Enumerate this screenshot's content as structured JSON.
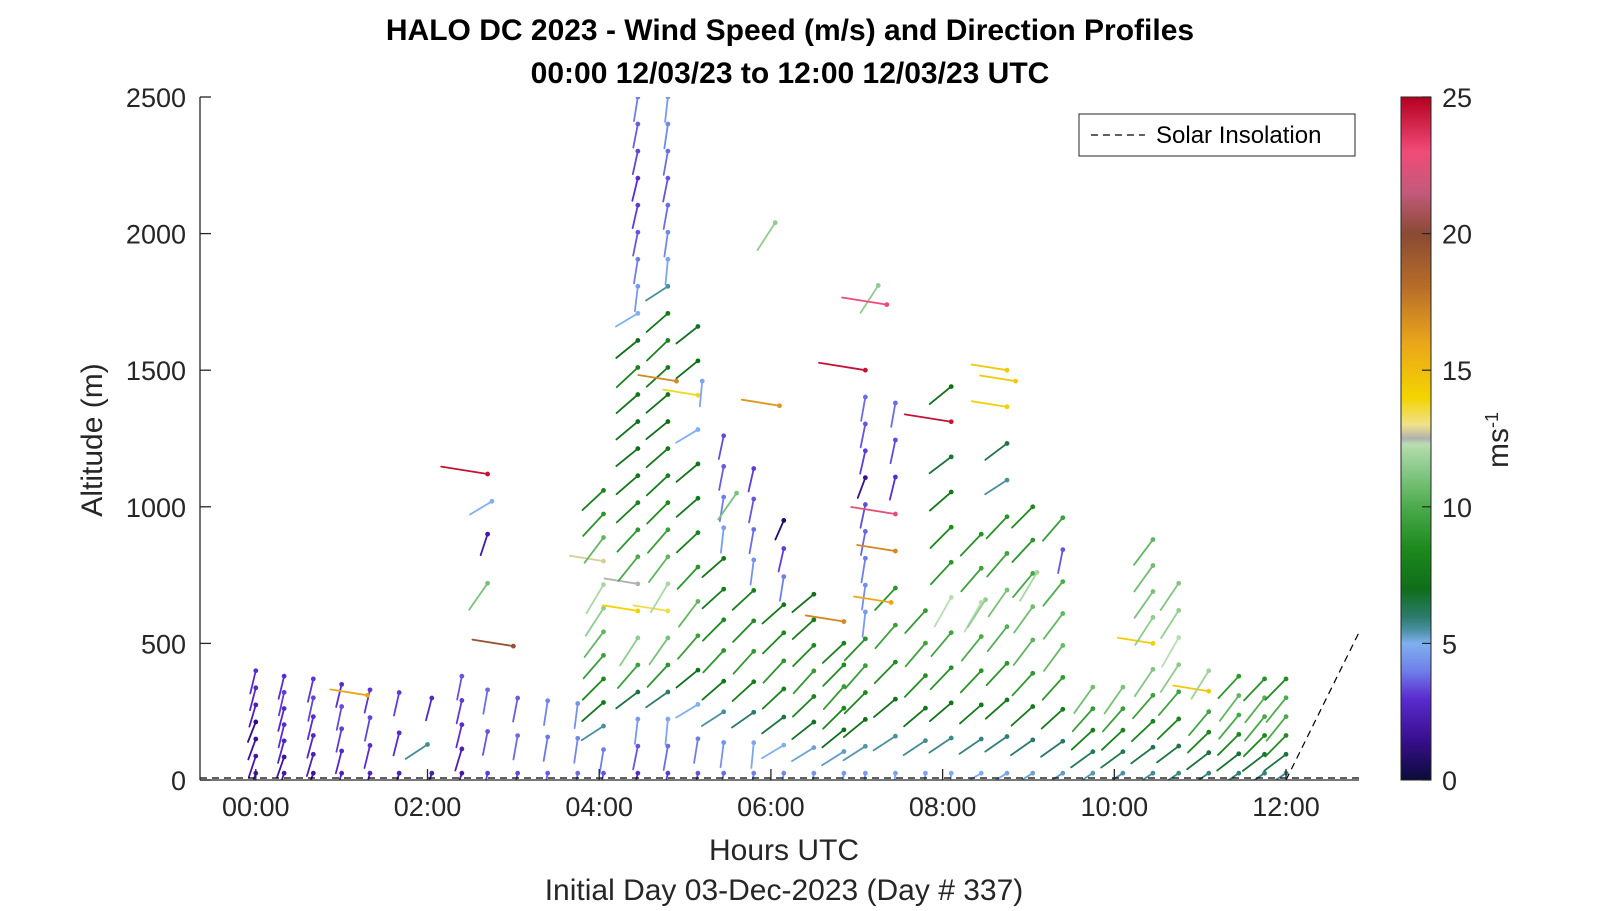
{
  "chart_data": {
    "type": "scatter",
    "title": "HALO DC 2023 - Wind Speed (m/s) and Direction Profiles",
    "subtitle": "00:00 12/03/23 to 12:00 12/03/23  UTC",
    "xlabel": "Hours UTC",
    "xlabel2": "Initial Day 03-Dec-2023 (Day # 337)",
    "ylabel": "Altitude (m)",
    "xlim": [
      -0.65,
      12.85
    ],
    "ylim": [
      0,
      2500
    ],
    "x_ticks": [
      0,
      2,
      4,
      6,
      8,
      10,
      12
    ],
    "x_tick_labels": [
      "00:00",
      "02:00",
      "04:00",
      "06:00",
      "08:00",
      "10:00",
      "12:00"
    ],
    "y_ticks": [
      0,
      500,
      1000,
      1500,
      2000,
      2500
    ],
    "y_tick_labels": [
      "0",
      "500",
      "1000",
      "1500",
      "2000",
      "2500"
    ],
    "colorbar": {
      "label": "ms-1",
      "label_main": "ms",
      "label_sup": "-1",
      "range": [
        0,
        25
      ],
      "ticks": [
        0,
        5,
        10,
        15,
        20,
        25
      ],
      "tick_labels": [
        "0",
        "5",
        "10",
        "15",
        "20",
        "25"
      ],
      "stops": [
        {
          "v": 0,
          "color": "#0b0b3a"
        },
        {
          "v": 1.5,
          "color": "#3a0f8f"
        },
        {
          "v": 3,
          "color": "#5a2ccf"
        },
        {
          "v": 4,
          "color": "#6f7fe8"
        },
        {
          "v": 5,
          "color": "#7fb0f0"
        },
        {
          "v": 5.5,
          "color": "#4a8fa0"
        },
        {
          "v": 6,
          "color": "#2b7a6a"
        },
        {
          "v": 7,
          "color": "#0f6e1a"
        },
        {
          "v": 8.5,
          "color": "#1e8a1e"
        },
        {
          "v": 10,
          "color": "#4cab4c"
        },
        {
          "v": 11.5,
          "color": "#8fcc8f"
        },
        {
          "v": 12.3,
          "color": "#b8ddb0"
        },
        {
          "v": 12.5,
          "color": "#b0b0b0"
        },
        {
          "v": 13,
          "color": "#efe28a"
        },
        {
          "v": 14,
          "color": "#f3d400"
        },
        {
          "v": 16,
          "color": "#eaa61a"
        },
        {
          "v": 18,
          "color": "#b86e28"
        },
        {
          "v": 20,
          "color": "#8a4a34"
        },
        {
          "v": 21.5,
          "color": "#c25a7a"
        },
        {
          "v": 23,
          "color": "#f04b78"
        },
        {
          "v": 25,
          "color": "#b5001f"
        }
      ]
    },
    "legend": {
      "entries": [
        "Solar Insolation"
      ],
      "location": "top-right"
    },
    "solar_insolation": {
      "x": [
        12.0,
        12.85
      ],
      "y": [
        0,
        540
      ]
    },
    "series": [
      {
        "name": "wind barbs",
        "columns": [
          {
            "t": 0.0,
            "top": 400,
            "spd": [
              2.2,
              2.0,
              1.6,
              1.3,
              2.4,
              2.8,
              3.0
            ]
          },
          {
            "t": 0.33,
            "top": 380,
            "spd": [
              2.0,
              1.8,
              2.6,
              3.0,
              2.8,
              3.2,
              3.0
            ]
          },
          {
            "t": 0.67,
            "top": 370,
            "spd": [
              1.8,
              2.4,
              2.7,
              3.0,
              3.3,
              3.1
            ]
          },
          {
            "t": 1.0,
            "top": 350,
            "spd": [
              2.5,
              2.8,
              3.2,
              3.4,
              3.0
            ]
          },
          {
            "t": 1.33,
            "top": 330,
            "spd": [
              2.6,
              3.0,
              3.3,
              3.1
            ]
          },
          {
            "t": 1.67,
            "top": 320,
            "spd": [
              2.4,
              2.9,
              3.2
            ]
          },
          {
            "t": 2.05,
            "top": 300,
            "spd": [
              2.2,
              2.8
            ]
          },
          {
            "t": 2.4,
            "top": 380,
            "spd": [
              2.0,
              2.3,
              3.0,
              3.2,
              3.5
            ]
          },
          {
            "t": 2.7,
            "top": 330,
            "spd": [
              3.2,
              3.5,
              3.8
            ]
          },
          {
            "t": 3.05,
            "top": 300,
            "spd": [
              3.4,
              3.8,
              3.6
            ]
          },
          {
            "t": 3.4,
            "top": 290,
            "spd": [
              3.6,
              3.9,
              4.1
            ]
          },
          {
            "t": 3.75,
            "top": 280,
            "spd": [
              3.8,
              4.2,
              4.4
            ]
          },
          {
            "t": 4.05,
            "top": 1060,
            "spd": [
              3.5,
              4.0,
              5.5,
              7.5,
              8.5,
              9.5,
              10.5,
              11.5,
              12.0,
              12.8,
              10.5,
              9.0,
              8.0
            ]
          },
          {
            "t": 4.45,
            "top": 2500,
            "spd": [
              3.0,
              3.5,
              4.5,
              6.5,
              9.5,
              11.5,
              14.0,
              12.5,
              10.0,
              9.0,
              8.0,
              7.5,
              7.0,
              7.2,
              7.5,
              8.0,
              7.0,
              5.0,
              4.5,
              4.0,
              3.5,
              3.2,
              3.0,
              3.3,
              3.6,
              4.0
            ]
          },
          {
            "t": 4.8,
            "top": 2500,
            "spd": [
              3.2,
              3.8,
              4.8,
              6.0,
              9.0,
              11.0,
              13.5,
              12.0,
              10.5,
              9.5,
              8.5,
              8.0,
              7.5,
              7.0,
              7.3,
              7.8,
              8.2,
              7.5,
              5.5,
              4.8,
              4.2,
              3.8,
              3.5,
              3.8,
              4.2,
              4.6
            ]
          },
          {
            "t": 5.15,
            "top": 1660,
            "spd": [
              3.5,
              4.0,
              5.0,
              7.0,
              9.5,
              10.5,
              9.0,
              8.0,
              7.5,
              7.2,
              5.0,
              13.8,
              7.0,
              6.8
            ]
          },
          {
            "t": 5.45,
            "top": 1260,
            "spd": [
              3.8,
              4.4,
              5.5,
              7.5,
              9.0,
              8.5,
              7.8,
              7.5,
              4.6,
              4.0,
              3.6,
              3.4
            ]
          },
          {
            "t": 5.8,
            "top": 1140,
            "spd": [
              4.0,
              4.8,
              6.0,
              7.8,
              9.2,
              8.6,
              7.9,
              4.4,
              3.8,
              3.5,
              3.2
            ]
          },
          {
            "t": 6.15,
            "top": 950,
            "spd": [
              4.2,
              5.0,
              6.5,
              8.0,
              9.0,
              8.4,
              7.6,
              4.0,
              3.2,
              0.8
            ]
          },
          {
            "t": 6.5,
            "top": 680,
            "spd": [
              4.4,
              5.2,
              6.8,
              8.2,
              9.2,
              8.5,
              7.8,
              7.2
            ]
          },
          {
            "t": 6.85,
            "top": 580,
            "spd": [
              4.5,
              5.3,
              7.0,
              8.4,
              9.3,
              8.6,
              8.0,
              17.0
            ]
          },
          {
            "t": 7.1,
            "top": 1500,
            "spd": [
              4.6,
              5.4,
              7.1,
              8.5,
              9.4,
              8.8,
              4.6,
              4.3,
              4.0,
              3.7,
              3.4,
              1.5,
              3.2,
              3.5,
              3.8,
              24.5
            ]
          },
          {
            "t": 7.45,
            "top": 1380,
            "spd": [
              4.7,
              5.5,
              7.2,
              8.6,
              9.5,
              9.0,
              17.0,
              22.5,
              3.0,
              3.4,
              3.8
            ]
          },
          {
            "t": 7.8,
            "top": 620,
            "spd": [
              4.8,
              5.6,
              7.3,
              8.7,
              9.6,
              9.2
            ]
          },
          {
            "t": 8.1,
            "top": 1440,
            "spd": [
              4.9,
              5.7,
              7.4,
              8.8,
              9.7,
              12.3,
              9.0,
              8.5,
              7.5,
              6.5,
              24.5,
              7.0
            ]
          },
          {
            "t": 8.45,
            "top": 900,
            "spd": [
              5.0,
              5.8,
              7.5,
              8.9,
              10.0,
              12.3,
              9.5,
              8.8
            ]
          },
          {
            "t": 8.75,
            "top": 1500,
            "spd": [
              5.1,
              5.9,
              7.6,
              9.0,
              10.2,
              11.0,
              9.6,
              8.9,
              5.5,
              6.5,
              14.2,
              14.5
            ]
          },
          {
            "t": 9.05,
            "top": 1000,
            "spd": [
              5.2,
              6.0,
              7.7,
              9.1,
              10.4,
              10.8,
              9.8,
              9.0,
              8.5
            ]
          },
          {
            "t": 9.4,
            "top": 960,
            "spd": [
              5.3,
              6.1,
              7.8,
              9.2,
              10.6,
              10.5,
              10.0,
              3.5,
              9.5
            ]
          },
          {
            "t": 9.75,
            "top": 340,
            "spd": [
              5.4,
              6.2,
              7.9,
              9.3,
              10.8
            ]
          },
          {
            "t": 10.1,
            "top": 340,
            "spd": [
              5.5,
              6.3,
              8.0,
              9.4,
              11.0
            ]
          },
          {
            "t": 10.45,
            "top": 880,
            "spd": [
              5.6,
              6.4,
              8.1,
              9.5,
              11.2,
              14.2,
              11.5,
              11.0,
              10.8,
              10.5
            ]
          },
          {
            "t": 10.75,
            "top": 720,
            "spd": [
              5.7,
              6.5,
              8.2,
              9.6,
              11.4,
              12.3,
              11.6,
              11.2
            ]
          },
          {
            "t": 11.1,
            "top": 400,
            "spd": [
              5.8,
              6.6,
              8.3,
              9.7,
              14.5,
              11.8
            ]
          },
          {
            "t": 11.45,
            "top": 380,
            "spd": [
              5.9,
              6.7,
              8.4,
              9.8,
              10.5,
              9.0
            ]
          },
          {
            "t": 11.75,
            "top": 370,
            "spd": [
              5.8,
              6.6,
              8.5,
              9.9,
              10.2,
              8.8
            ]
          },
          {
            "t": 12.0,
            "top": 370,
            "spd": [
              5.7,
              6.5,
              8.6,
              10.0,
              10.0,
              8.6
            ]
          }
        ]
      },
      {
        "name": "isolated barbs",
        "points": [
          {
            "t": 2.7,
            "alt": 1120,
            "spd": 24.5
          },
          {
            "t": 2.75,
            "alt": 1020,
            "spd": 5.0
          },
          {
            "t": 2.7,
            "alt": 900,
            "spd": 2.0
          },
          {
            "t": 2.7,
            "alt": 720,
            "spd": 11.0
          },
          {
            "t": 3.0,
            "alt": 490,
            "spd": 19.5
          },
          {
            "t": 1.3,
            "alt": 310,
            "spd": 16.0
          },
          {
            "t": 2.0,
            "alt": 130,
            "spd": 5.6
          },
          {
            "t": 4.9,
            "alt": 1460,
            "spd": 17.0
          },
          {
            "t": 5.2,
            "alt": 1460,
            "spd": 4.8
          },
          {
            "t": 6.05,
            "alt": 2040,
            "spd": 11.5
          },
          {
            "t": 6.1,
            "alt": 1370,
            "spd": 16.5
          },
          {
            "t": 5.6,
            "alt": 1050,
            "spd": 11.0
          },
          {
            "t": 7.25,
            "alt": 1810,
            "spd": 11.5
          },
          {
            "t": 7.35,
            "alt": 1740,
            "spd": 23.0
          },
          {
            "t": 8.5,
            "alt": 660,
            "spd": 11.5
          },
          {
            "t": 8.85,
            "alt": 1460,
            "spd": 14.5
          },
          {
            "t": 9.1,
            "alt": 760,
            "spd": 12.0
          },
          {
            "t": 7.4,
            "alt": 650,
            "spd": 16.0
          }
        ]
      }
    ]
  }
}
